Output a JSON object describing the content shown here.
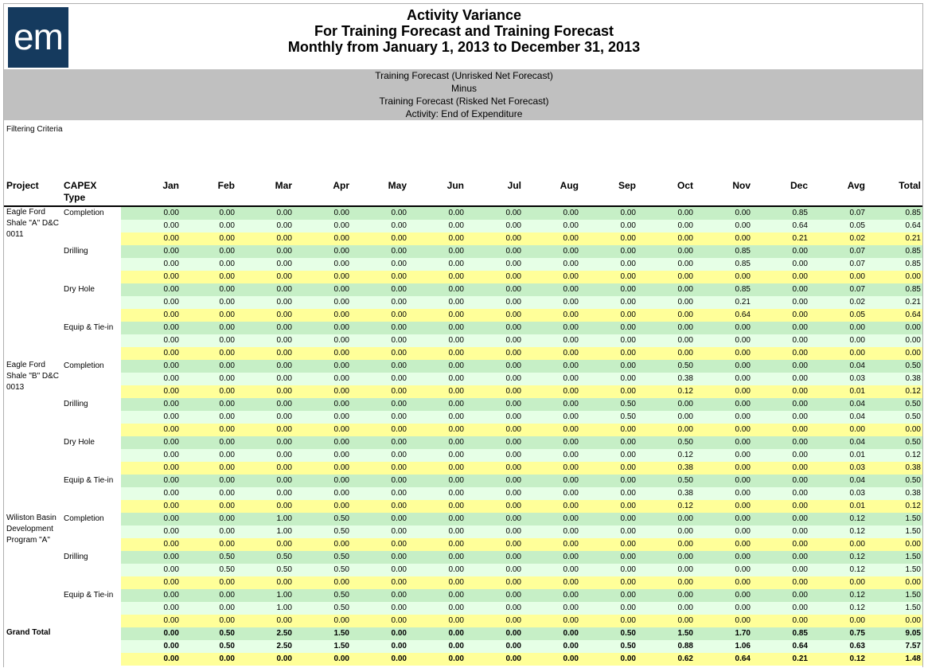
{
  "logo_text": "em",
  "titles": [
    "Activity Variance",
    "For Training Forecast and Training Forecast",
    "Monthly from January 1, 2013 to December 31, 2013"
  ],
  "subheader": [
    "Training Forecast (Unrisked Net Forecast)",
    "Minus",
    "Training Forecast (Risked Net Forecast)",
    "Activity: End of Expenditure"
  ],
  "filter_label": "Filtering Criteria",
  "columns": {
    "project": "Project",
    "capex": "CAPEX Type",
    "values": [
      "Jan",
      "Feb",
      "Mar",
      "Apr",
      "May",
      "Jun",
      "Jul",
      "Aug",
      "Sep",
      "Oct",
      "Nov",
      "Dec",
      "Avg",
      "Total"
    ]
  },
  "groups": [
    {
      "project": "Eagle Ford Shale \"A\" D&C 0011",
      "capex": "Completion",
      "rows": [
        [
          "0.00",
          "0.00",
          "0.00",
          "0.00",
          "0.00",
          "0.00",
          "0.00",
          "0.00",
          "0.00",
          "0.00",
          "0.00",
          "0.85",
          "0.07",
          "0.85"
        ],
        [
          "0.00",
          "0.00",
          "0.00",
          "0.00",
          "0.00",
          "0.00",
          "0.00",
          "0.00",
          "0.00",
          "0.00",
          "0.00",
          "0.64",
          "0.05",
          "0.64"
        ],
        [
          "0.00",
          "0.00",
          "0.00",
          "0.00",
          "0.00",
          "0.00",
          "0.00",
          "0.00",
          "0.00",
          "0.00",
          "0.00",
          "0.21",
          "0.02",
          "0.21"
        ]
      ]
    },
    {
      "project": "",
      "capex": "Drilling",
      "rows": [
        [
          "0.00",
          "0.00",
          "0.00",
          "0.00",
          "0.00",
          "0.00",
          "0.00",
          "0.00",
          "0.00",
          "0.00",
          "0.85",
          "0.00",
          "0.07",
          "0.85"
        ],
        [
          "0.00",
          "0.00",
          "0.00",
          "0.00",
          "0.00",
          "0.00",
          "0.00",
          "0.00",
          "0.00",
          "0.00",
          "0.85",
          "0.00",
          "0.07",
          "0.85"
        ],
        [
          "0.00",
          "0.00",
          "0.00",
          "0.00",
          "0.00",
          "0.00",
          "0.00",
          "0.00",
          "0.00",
          "0.00",
          "0.00",
          "0.00",
          "0.00",
          "0.00"
        ]
      ]
    },
    {
      "project": "",
      "capex": "Dry Hole",
      "rows": [
        [
          "0.00",
          "0.00",
          "0.00",
          "0.00",
          "0.00",
          "0.00",
          "0.00",
          "0.00",
          "0.00",
          "0.00",
          "0.85",
          "0.00",
          "0.07",
          "0.85"
        ],
        [
          "0.00",
          "0.00",
          "0.00",
          "0.00",
          "0.00",
          "0.00",
          "0.00",
          "0.00",
          "0.00",
          "0.00",
          "0.21",
          "0.00",
          "0.02",
          "0.21"
        ],
        [
          "0.00",
          "0.00",
          "0.00",
          "0.00",
          "0.00",
          "0.00",
          "0.00",
          "0.00",
          "0.00",
          "0.00",
          "0.64",
          "0.00",
          "0.05",
          "0.64"
        ]
      ]
    },
    {
      "project": "",
      "capex": "Equip & Tie-in",
      "rows": [
        [
          "0.00",
          "0.00",
          "0.00",
          "0.00",
          "0.00",
          "0.00",
          "0.00",
          "0.00",
          "0.00",
          "0.00",
          "0.00",
          "0.00",
          "0.00",
          "0.00"
        ],
        [
          "0.00",
          "0.00",
          "0.00",
          "0.00",
          "0.00",
          "0.00",
          "0.00",
          "0.00",
          "0.00",
          "0.00",
          "0.00",
          "0.00",
          "0.00",
          "0.00"
        ],
        [
          "0.00",
          "0.00",
          "0.00",
          "0.00",
          "0.00",
          "0.00",
          "0.00",
          "0.00",
          "0.00",
          "0.00",
          "0.00",
          "0.00",
          "0.00",
          "0.00"
        ]
      ]
    },
    {
      "project": "Eagle Ford Shale \"B\" D&C 0013",
      "capex": "Completion",
      "rows": [
        [
          "0.00",
          "0.00",
          "0.00",
          "0.00",
          "0.00",
          "0.00",
          "0.00",
          "0.00",
          "0.00",
          "0.50",
          "0.00",
          "0.00",
          "0.04",
          "0.50"
        ],
        [
          "0.00",
          "0.00",
          "0.00",
          "0.00",
          "0.00",
          "0.00",
          "0.00",
          "0.00",
          "0.00",
          "0.38",
          "0.00",
          "0.00",
          "0.03",
          "0.38"
        ],
        [
          "0.00",
          "0.00",
          "0.00",
          "0.00",
          "0.00",
          "0.00",
          "0.00",
          "0.00",
          "0.00",
          "0.12",
          "0.00",
          "0.00",
          "0.01",
          "0.12"
        ]
      ]
    },
    {
      "project": "",
      "capex": "Drilling",
      "rows": [
        [
          "0.00",
          "0.00",
          "0.00",
          "0.00",
          "0.00",
          "0.00",
          "0.00",
          "0.00",
          "0.50",
          "0.00",
          "0.00",
          "0.00",
          "0.04",
          "0.50"
        ],
        [
          "0.00",
          "0.00",
          "0.00",
          "0.00",
          "0.00",
          "0.00",
          "0.00",
          "0.00",
          "0.50",
          "0.00",
          "0.00",
          "0.00",
          "0.04",
          "0.50"
        ],
        [
          "0.00",
          "0.00",
          "0.00",
          "0.00",
          "0.00",
          "0.00",
          "0.00",
          "0.00",
          "0.00",
          "0.00",
          "0.00",
          "0.00",
          "0.00",
          "0.00"
        ]
      ]
    },
    {
      "project": "",
      "capex": "Dry Hole",
      "rows": [
        [
          "0.00",
          "0.00",
          "0.00",
          "0.00",
          "0.00",
          "0.00",
          "0.00",
          "0.00",
          "0.00",
          "0.50",
          "0.00",
          "0.00",
          "0.04",
          "0.50"
        ],
        [
          "0.00",
          "0.00",
          "0.00",
          "0.00",
          "0.00",
          "0.00",
          "0.00",
          "0.00",
          "0.00",
          "0.12",
          "0.00",
          "0.00",
          "0.01",
          "0.12"
        ],
        [
          "0.00",
          "0.00",
          "0.00",
          "0.00",
          "0.00",
          "0.00",
          "0.00",
          "0.00",
          "0.00",
          "0.38",
          "0.00",
          "0.00",
          "0.03",
          "0.38"
        ]
      ]
    },
    {
      "project": "",
      "capex": "Equip & Tie-in",
      "rows": [
        [
          "0.00",
          "0.00",
          "0.00",
          "0.00",
          "0.00",
          "0.00",
          "0.00",
          "0.00",
          "0.00",
          "0.50",
          "0.00",
          "0.00",
          "0.04",
          "0.50"
        ],
        [
          "0.00",
          "0.00",
          "0.00",
          "0.00",
          "0.00",
          "0.00",
          "0.00",
          "0.00",
          "0.00",
          "0.38",
          "0.00",
          "0.00",
          "0.03",
          "0.38"
        ],
        [
          "0.00",
          "0.00",
          "0.00",
          "0.00",
          "0.00",
          "0.00",
          "0.00",
          "0.00",
          "0.00",
          "0.12",
          "0.00",
          "0.00",
          "0.01",
          "0.12"
        ]
      ]
    },
    {
      "project": "Wiliston Basin Development Program \"A\"",
      "capex": "Completion",
      "rows": [
        [
          "0.00",
          "0.00",
          "1.00",
          "0.50",
          "0.00",
          "0.00",
          "0.00",
          "0.00",
          "0.00",
          "0.00",
          "0.00",
          "0.00",
          "0.12",
          "1.50"
        ],
        [
          "0.00",
          "0.00",
          "1.00",
          "0.50",
          "0.00",
          "0.00",
          "0.00",
          "0.00",
          "0.00",
          "0.00",
          "0.00",
          "0.00",
          "0.12",
          "1.50"
        ],
        [
          "0.00",
          "0.00",
          "0.00",
          "0.00",
          "0.00",
          "0.00",
          "0.00",
          "0.00",
          "0.00",
          "0.00",
          "0.00",
          "0.00",
          "0.00",
          "0.00"
        ]
      ]
    },
    {
      "project": "",
      "capex": "Drilling",
      "rows": [
        [
          "0.00",
          "0.50",
          "0.50",
          "0.50",
          "0.00",
          "0.00",
          "0.00",
          "0.00",
          "0.00",
          "0.00",
          "0.00",
          "0.00",
          "0.12",
          "1.50"
        ],
        [
          "0.00",
          "0.50",
          "0.50",
          "0.50",
          "0.00",
          "0.00",
          "0.00",
          "0.00",
          "0.00",
          "0.00",
          "0.00",
          "0.00",
          "0.12",
          "1.50"
        ],
        [
          "0.00",
          "0.00",
          "0.00",
          "0.00",
          "0.00",
          "0.00",
          "0.00",
          "0.00",
          "0.00",
          "0.00",
          "0.00",
          "0.00",
          "0.00",
          "0.00"
        ]
      ]
    },
    {
      "project": "",
      "capex": "Equip & Tie-in",
      "rows": [
        [
          "0.00",
          "0.00",
          "1.00",
          "0.50",
          "0.00",
          "0.00",
          "0.00",
          "0.00",
          "0.00",
          "0.00",
          "0.00",
          "0.00",
          "0.12",
          "1.50"
        ],
        [
          "0.00",
          "0.00",
          "1.00",
          "0.50",
          "0.00",
          "0.00",
          "0.00",
          "0.00",
          "0.00",
          "0.00",
          "0.00",
          "0.00",
          "0.12",
          "1.50"
        ],
        [
          "0.00",
          "0.00",
          "0.00",
          "0.00",
          "0.00",
          "0.00",
          "0.00",
          "0.00",
          "0.00",
          "0.00",
          "0.00",
          "0.00",
          "0.00",
          "0.00"
        ]
      ]
    }
  ],
  "grand_total": {
    "label": "Grand Total",
    "rows": [
      [
        "0.00",
        "0.50",
        "2.50",
        "1.50",
        "0.00",
        "0.00",
        "0.00",
        "0.00",
        "0.50",
        "1.50",
        "1.70",
        "0.85",
        "0.75",
        "9.05"
      ],
      [
        "0.00",
        "0.50",
        "2.50",
        "1.50",
        "0.00",
        "0.00",
        "0.00",
        "0.00",
        "0.50",
        "0.88",
        "1.06",
        "0.64",
        "0.63",
        "7.57"
      ],
      [
        "0.00",
        "0.00",
        "0.00",
        "0.00",
        "0.00",
        "0.00",
        "0.00",
        "0.00",
        "0.00",
        "0.62",
        "0.64",
        "0.21",
        "0.12",
        "1.48"
      ]
    ]
  },
  "colors": {
    "row1": "#c6efc6",
    "row2": "#e6ffe6",
    "row3": "#ffff99",
    "header_band": "#c0c0c0",
    "logo": "#153a5e"
  }
}
